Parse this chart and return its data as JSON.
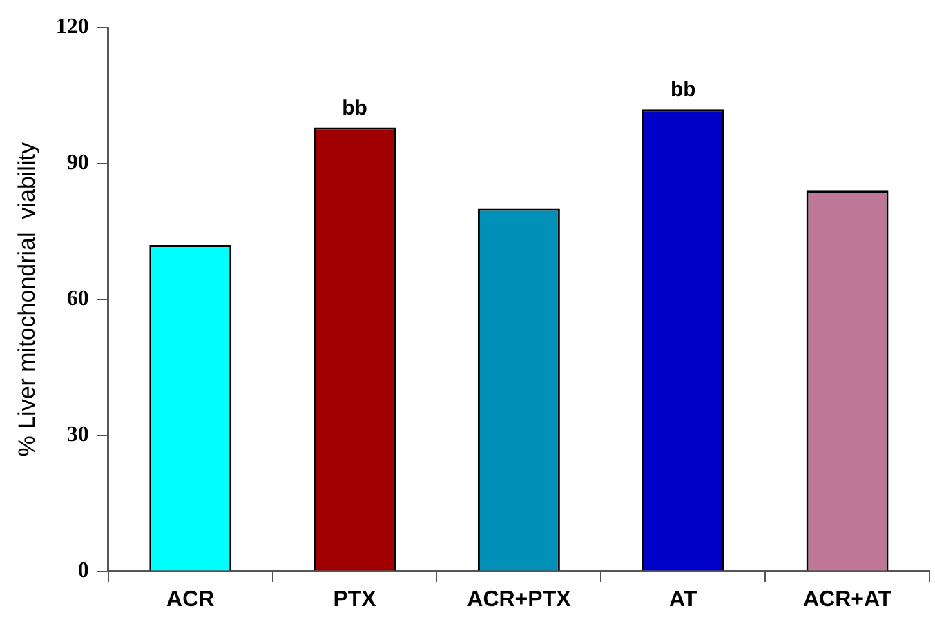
{
  "chart_data": {
    "type": "bar",
    "ylabel": "% Liver mitochondrial  viability",
    "categories": [
      "ACR",
      "PTX",
      "ACR+PTX",
      "AT",
      "ACR+AT"
    ],
    "values": [
      72,
      98,
      80,
      102,
      84
    ],
    "colors": [
      "#00ffff",
      "#a00000",
      "#0090b8",
      "#0000c8",
      "#c07898"
    ],
    "ylim": [
      0,
      120
    ],
    "yticks": [
      0,
      30,
      60,
      90,
      120
    ],
    "grid": false,
    "legend": false,
    "annotations": [
      {
        "text": "bb",
        "x": "PTX",
        "y": 98
      },
      {
        "text": "bb",
        "x": "AT",
        "y": 102
      }
    ]
  }
}
